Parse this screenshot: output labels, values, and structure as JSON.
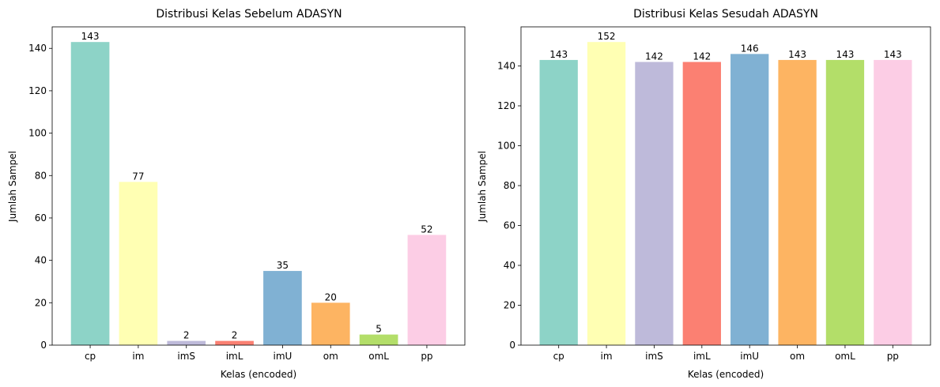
{
  "chart_data": [
    {
      "type": "bar",
      "title": "Distribusi Kelas Sebelum ADASYN",
      "xlabel": "Kelas (encoded)",
      "ylabel": "Jumlah Sampel",
      "categories": [
        "cp",
        "im",
        "imS",
        "imL",
        "imU",
        "om",
        "omL",
        "pp"
      ],
      "values": [
        143,
        77,
        2,
        2,
        35,
        20,
        5,
        52
      ],
      "data_labels": [
        "143",
        "77",
        "2",
        "2",
        "35",
        "20",
        "5",
        "52"
      ],
      "ylim": [
        0,
        150.15
      ],
      "yticks": [
        0,
        20,
        40,
        60,
        80,
        100,
        120,
        140
      ],
      "ytick_labels": [
        "0",
        "20",
        "40",
        "60",
        "80",
        "100",
        "120",
        "140"
      ],
      "colors": [
        "#8dd3c7",
        "#ffffb3",
        "#bebada",
        "#fb8072",
        "#80b1d3",
        "#fdb462",
        "#b3de69",
        "#fccde5"
      ],
      "grid": false,
      "legend": "none"
    },
    {
      "type": "bar",
      "title": "Distribusi Kelas Sesudah ADASYN",
      "xlabel": "Kelas (encoded)",
      "ylabel": "Jumlah Sampel",
      "categories": [
        "cp",
        "im",
        "imS",
        "imL",
        "imU",
        "om",
        "omL",
        "pp"
      ],
      "values": [
        143,
        152,
        142,
        142,
        146,
        143,
        143,
        143
      ],
      "data_labels": [
        "143",
        "152",
        "142",
        "142",
        "146",
        "143",
        "143",
        "143"
      ],
      "ylim": [
        0,
        159.6
      ],
      "yticks": [
        0,
        20,
        40,
        60,
        80,
        100,
        120,
        140
      ],
      "ytick_labels": [
        "0",
        "20",
        "40",
        "60",
        "80",
        "100",
        "120",
        "140"
      ],
      "colors": [
        "#8dd3c7",
        "#ffffb3",
        "#bebada",
        "#fb8072",
        "#80b1d3",
        "#fdb462",
        "#b3de69",
        "#fccde5"
      ],
      "grid": false,
      "legend": "none"
    }
  ]
}
